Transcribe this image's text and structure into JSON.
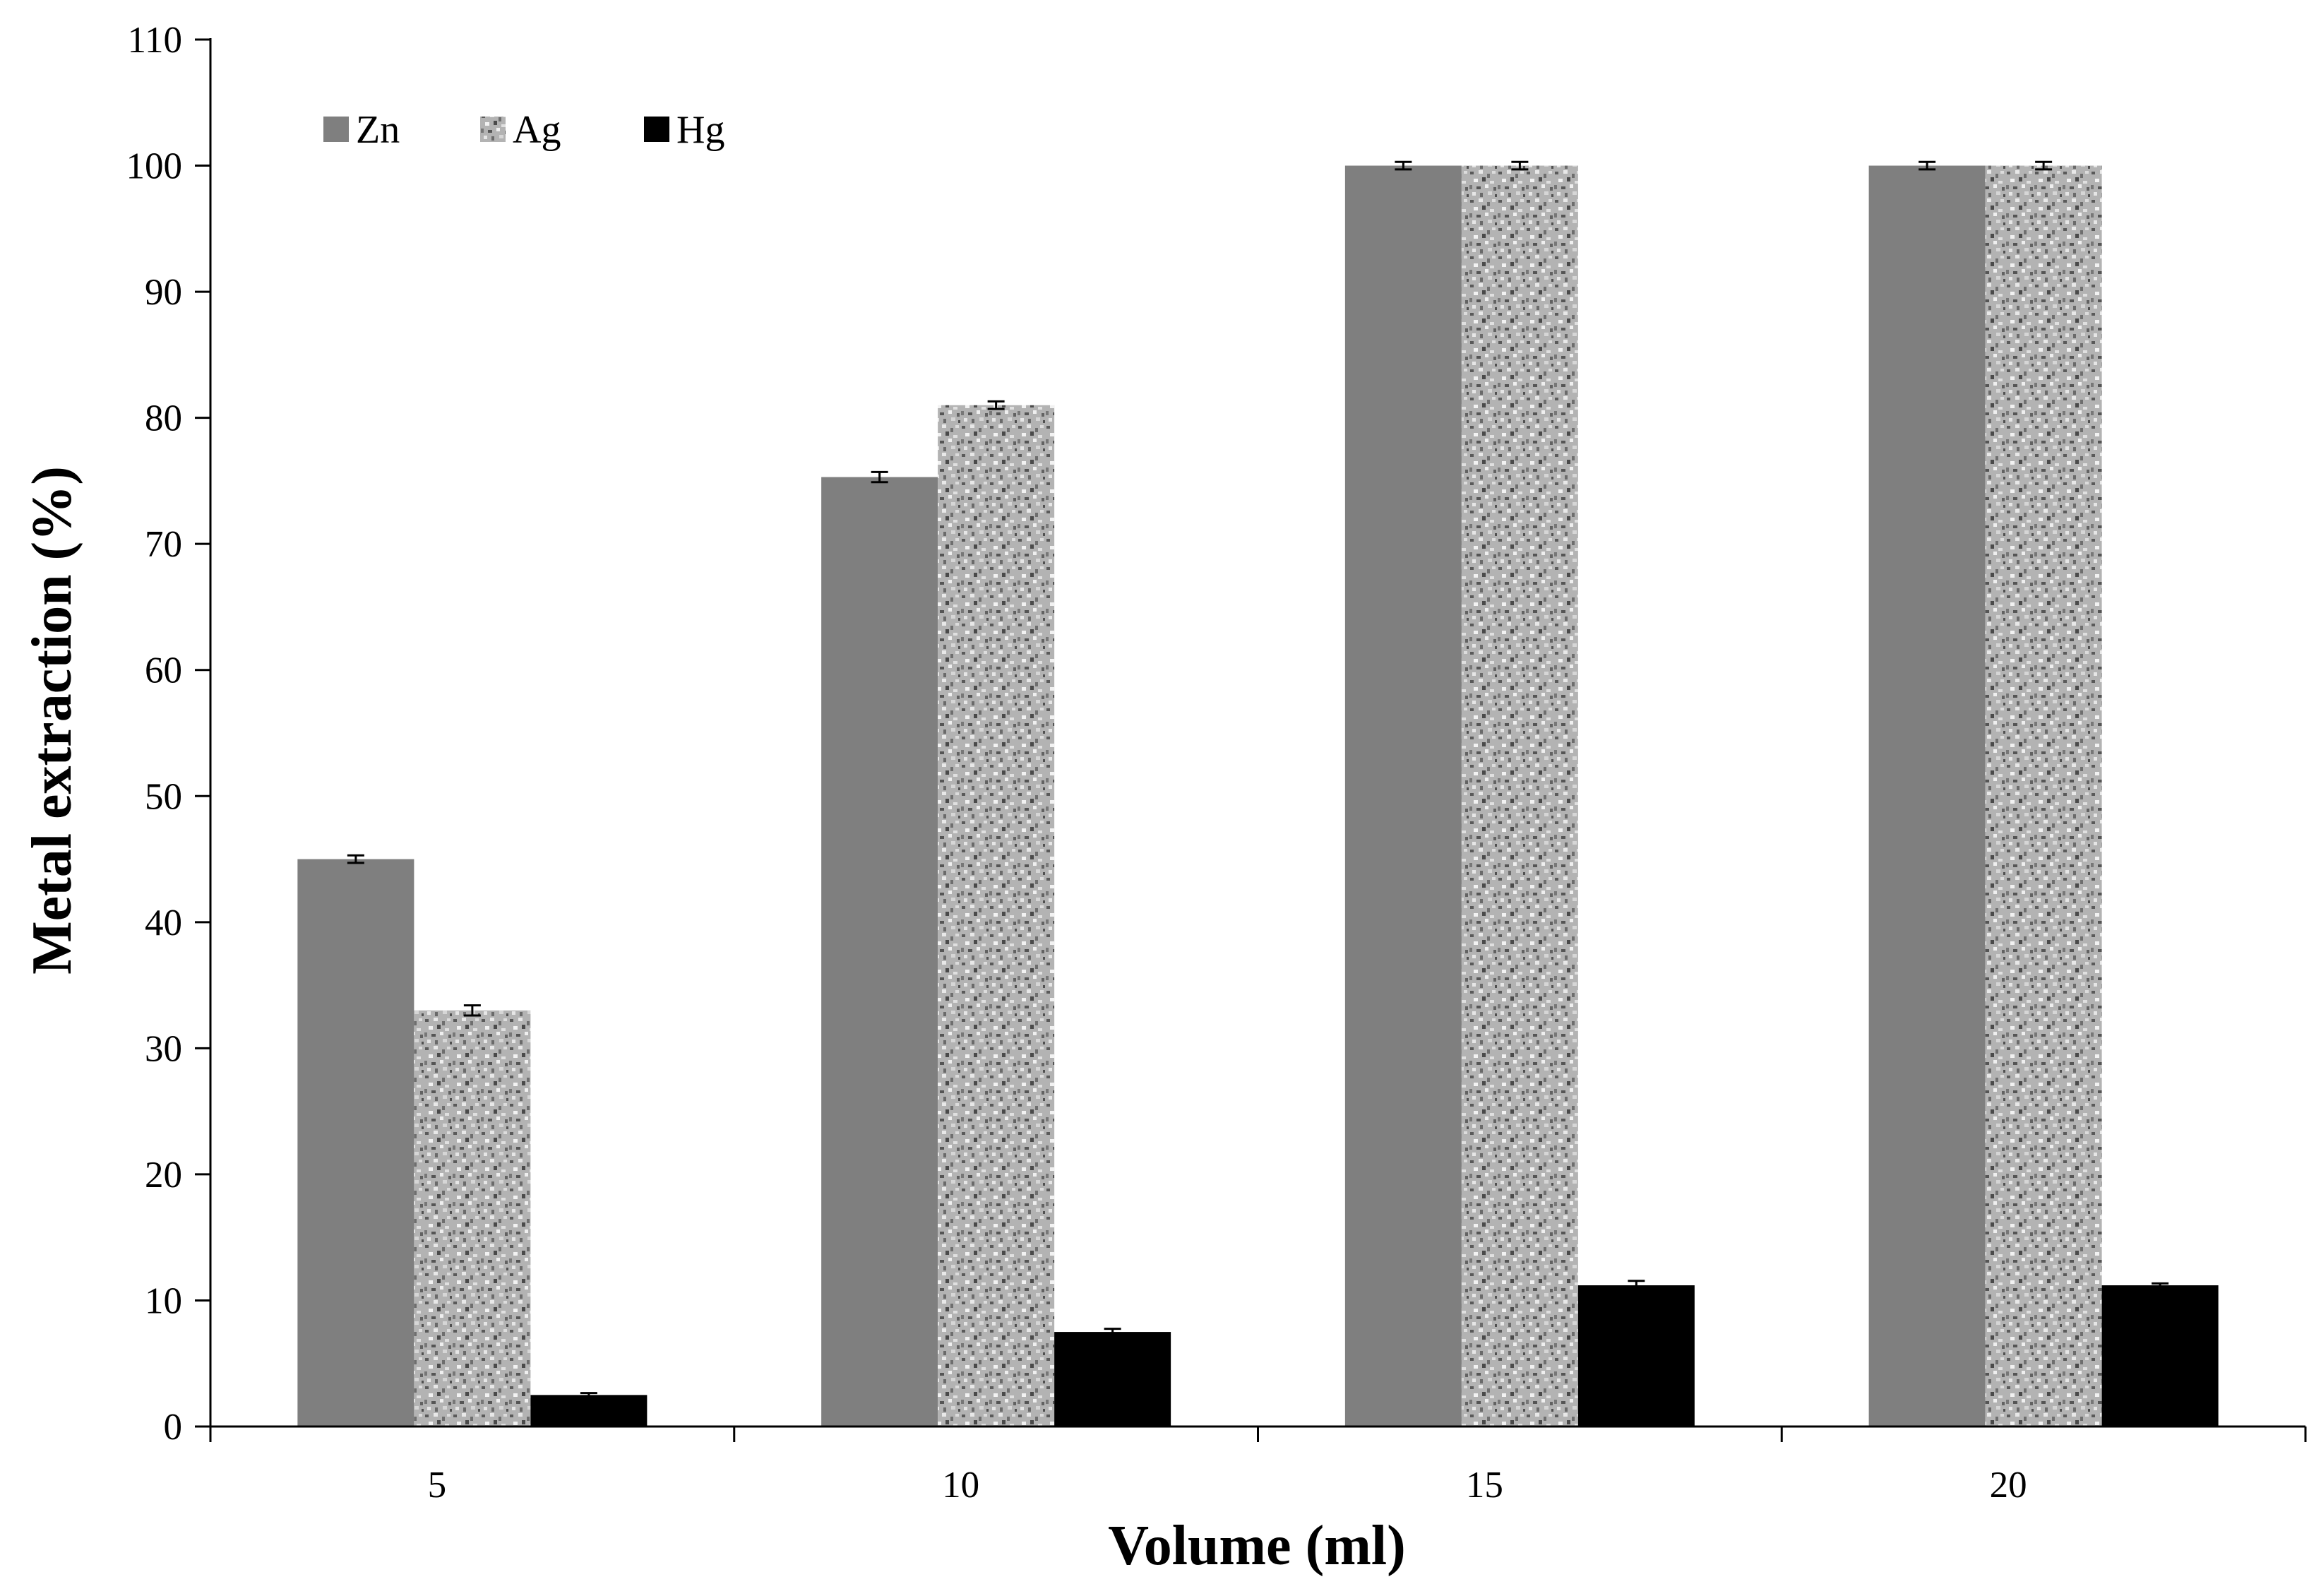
{
  "chart_data": {
    "type": "bar",
    "title": "",
    "xlabel": "Volume (ml)",
    "ylabel": "Metal extraction (%)",
    "categories": [
      "5",
      "10",
      "15",
      "20"
    ],
    "ylim": [
      0,
      110
    ],
    "yticks": [
      "0",
      "10",
      "20",
      "30",
      "40",
      "50",
      "60",
      "70",
      "80",
      "90",
      "100",
      "110"
    ],
    "grid": false,
    "legend_position": "top-left",
    "series": [
      {
        "name": "Zn",
        "values": [
          45,
          75.3,
          100,
          100
        ],
        "errors": [
          0.3,
          0.4,
          0.3,
          0.3
        ],
        "color": "#7f7f7f",
        "fill": "solid"
      },
      {
        "name": "Ag",
        "values": [
          33,
          81,
          100,
          100
        ],
        "errors": [
          0.4,
          0.3,
          0.3,
          0.3
        ],
        "color": "#a6a6a6",
        "fill": "speckled"
      },
      {
        "name": "Hg",
        "values": [
          2.5,
          7.5,
          11.2,
          11.2
        ],
        "errors": [
          0.15,
          0.25,
          0.35,
          0.15
        ],
        "color": "#000000",
        "fill": "solid"
      }
    ]
  }
}
